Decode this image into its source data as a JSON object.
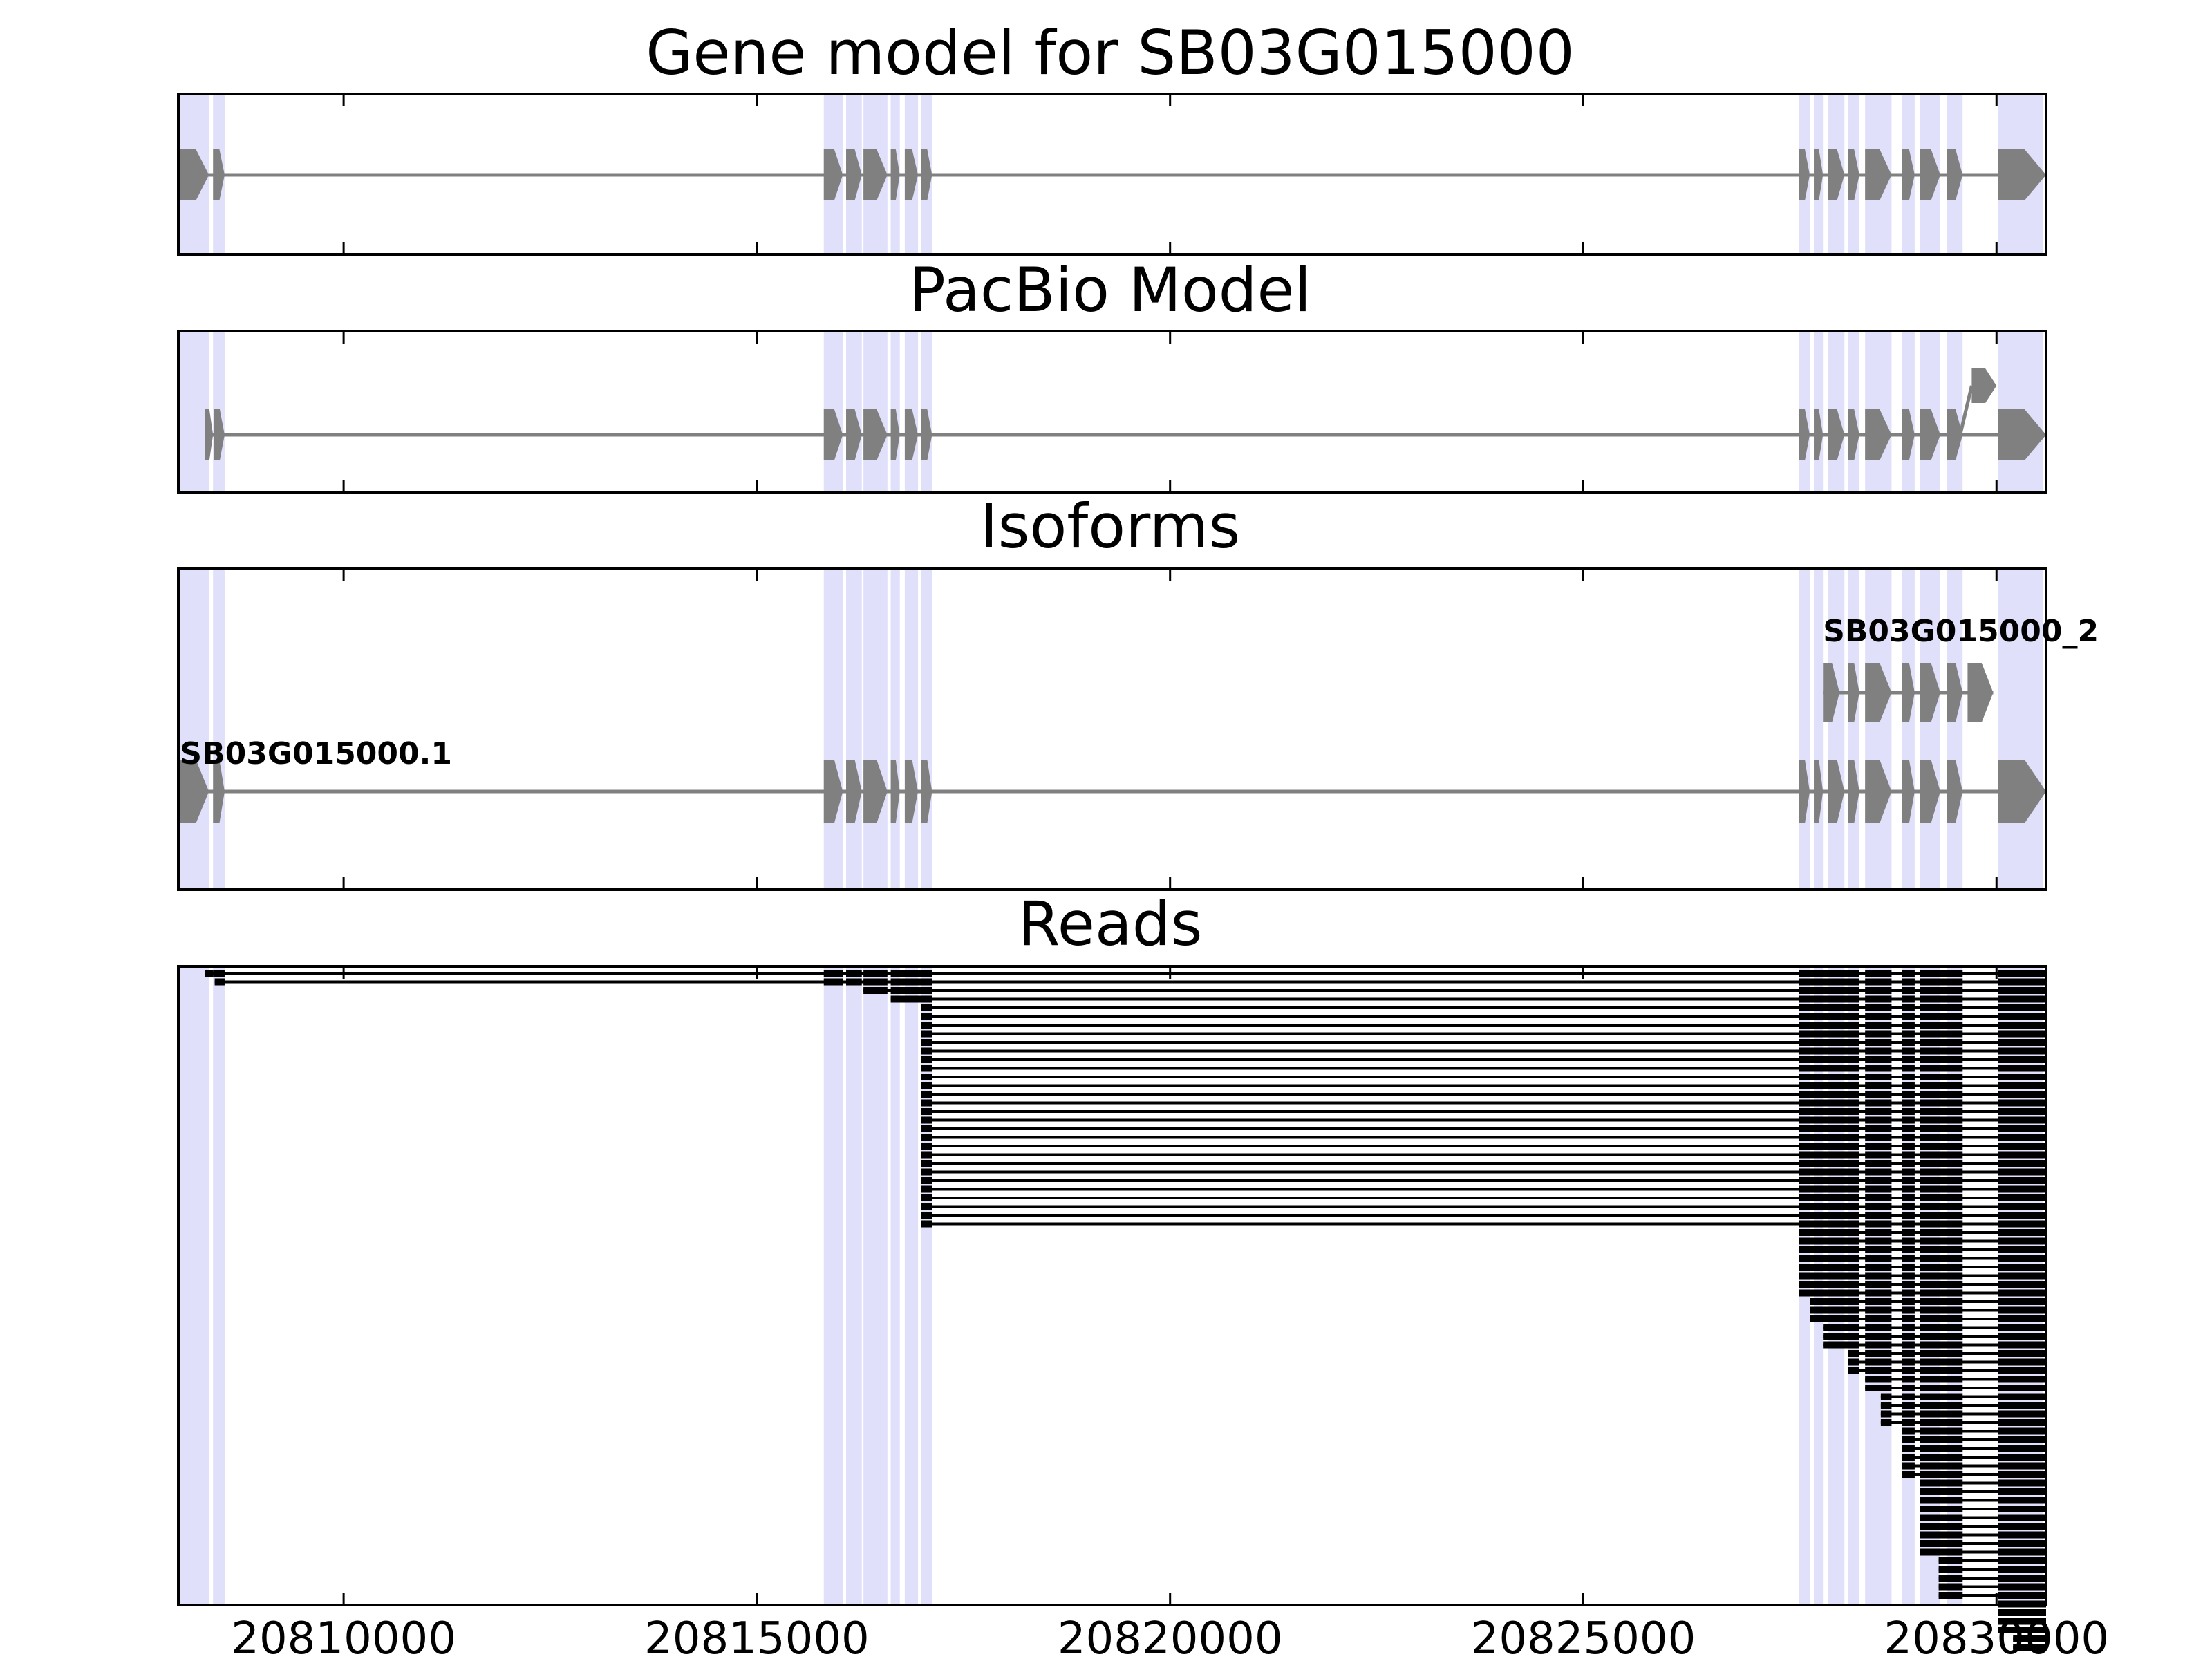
{
  "figure": {
    "title": "Gene model for SB03G015000",
    "colors": {
      "exon": "#808080",
      "highlight": "#e0e0fa",
      "read": "#000000",
      "frame": "#000000"
    }
  },
  "chart_data": {
    "type": "gene-model-tracks",
    "x_axis": {
      "xlim": [
        20808000,
        20830600
      ],
      "ticks": [
        20810000,
        20815000,
        20820000,
        20825000,
        20830000
      ],
      "tick_labels": [
        "20810000",
        "20815000",
        "20820000",
        "20825000",
        "20830000"
      ]
    },
    "exon_regions": [
      [
        20808020,
        20808370
      ],
      [
        20808420,
        20808560
      ],
      [
        20815810,
        20816040
      ],
      [
        20816080,
        20816270
      ],
      [
        20816290,
        20816580
      ],
      [
        20816620,
        20816730
      ],
      [
        20816790,
        20816950
      ],
      [
        20816990,
        20817120
      ],
      [
        20827610,
        20827740
      ],
      [
        20827790,
        20827900
      ],
      [
        20827960,
        20828160
      ],
      [
        20828200,
        20828340
      ],
      [
        20828410,
        20828730
      ],
      [
        20828860,
        20829010
      ],
      [
        20829070,
        20829320
      ],
      [
        20829400,
        20829590
      ],
      [
        20830020,
        20830560
      ]
    ],
    "tracks": [
      {
        "title": "Gene model for SB03G015000",
        "models": [
          {
            "label": "",
            "lane": 0,
            "exons": [
              [
                20808020,
                20808370
              ],
              [
                20808420,
                20808560
              ],
              [
                20815810,
                20816040
              ],
              [
                20816080,
                20816270
              ],
              [
                20816290,
                20816580
              ],
              [
                20816620,
                20816730
              ],
              [
                20816790,
                20816950
              ],
              [
                20816990,
                20817120
              ],
              [
                20827610,
                20827740
              ],
              [
                20827790,
                20827900
              ],
              [
                20827960,
                20828160
              ],
              [
                20828200,
                20828340
              ],
              [
                20828410,
                20828730
              ],
              [
                20828860,
                20829010
              ],
              [
                20829070,
                20829320
              ],
              [
                20829400,
                20829590
              ],
              [
                20830020,
                20830600
              ]
            ]
          }
        ]
      },
      {
        "title": "PacBio Model",
        "models": [
          {
            "label": "",
            "lane": 0,
            "exons": [
              [
                20808320,
                20808420
              ],
              [
                20808430,
                20808560
              ],
              [
                20815810,
                20816040
              ],
              [
                20816080,
                20816270
              ],
              [
                20816290,
                20816580
              ],
              [
                20816620,
                20816730
              ],
              [
                20816790,
                20816950
              ],
              [
                20816990,
                20817120
              ],
              [
                20827610,
                20827740
              ],
              [
                20827790,
                20827900
              ],
              [
                20827960,
                20828160
              ],
              [
                20828200,
                20828340
              ],
              [
                20828410,
                20828730
              ],
              [
                20828860,
                20829010
              ],
              [
                20829070,
                20829320
              ],
              [
                20829400,
                20829590
              ],
              [
                20830020,
                20830600
              ]
            ]
          },
          {
            "label": "",
            "lane": 1,
            "exons": [
              [
                20829700,
                20830000
              ]
            ],
            "branch_from": 20829560
          }
        ]
      },
      {
        "title": "Isoforms",
        "models": [
          {
            "label": "SB03G015000.1",
            "lane": 0,
            "exons": [
              [
                20808020,
                20808370
              ],
              [
                20808420,
                20808560
              ],
              [
                20815810,
                20816040
              ],
              [
                20816080,
                20816270
              ],
              [
                20816290,
                20816580
              ],
              [
                20816620,
                20816730
              ],
              [
                20816790,
                20816950
              ],
              [
                20816990,
                20817120
              ],
              [
                20827610,
                20827740
              ],
              [
                20827790,
                20827900
              ],
              [
                20827960,
                20828160
              ],
              [
                20828200,
                20828340
              ],
              [
                20828410,
                20828730
              ],
              [
                20828860,
                20829010
              ],
              [
                20829070,
                20829320
              ],
              [
                20829400,
                20829590
              ],
              [
                20830020,
                20830600
              ]
            ]
          },
          {
            "label": "SB03G015000_2",
            "lane": 1,
            "exons": [
              [
                20827900,
                20828100
              ],
              [
                20828200,
                20828340
              ],
              [
                20828410,
                20828730
              ],
              [
                20828860,
                20829010
              ],
              [
                20829070,
                20829320
              ],
              [
                20829400,
                20829590
              ],
              [
                20829650,
                20829960
              ]
            ]
          }
        ]
      },
      {
        "title": "Reads",
        "reads": {
          "layout": "stacked",
          "groups": [
            {
              "count": 1,
              "exons": [
                [
                  20808320,
                  20808420
                ],
                [
                  20808420,
                  20808560
                ],
                [
                  20815810,
                  20816040
                ],
                [
                  20816080,
                  20816270
                ],
                [
                  20816290,
                  20816580
                ],
                [
                  20816620,
                  20817120
                ],
                [
                  20827610,
                  20828340
                ],
                [
                  20828410,
                  20828730
                ],
                [
                  20828860,
                  20829010
                ],
                [
                  20829070,
                  20829590
                ],
                [
                  20830020,
                  20830600
                ]
              ]
            },
            {
              "count": 1,
              "exons": [
                [
                  20808440,
                  20808560
                ],
                [
                  20815810,
                  20816040
                ],
                [
                  20816080,
                  20816270
                ],
                [
                  20816290,
                  20816580
                ],
                [
                  20816620,
                  20817120
                ],
                [
                  20827610,
                  20828340
                ],
                [
                  20828410,
                  20828730
                ],
                [
                  20828860,
                  20829010
                ],
                [
                  20829070,
                  20829590
                ],
                [
                  20830020,
                  20830600
                ]
              ]
            },
            {
              "count": 1,
              "exons": [
                [
                  20816290,
                  20816580
                ],
                [
                  20816620,
                  20817120
                ],
                [
                  20827610,
                  20828340
                ],
                [
                  20828410,
                  20828730
                ],
                [
                  20828860,
                  20829010
                ],
                [
                  20829070,
                  20829590
                ],
                [
                  20830020,
                  20830600
                ]
              ]
            },
            {
              "count": 1,
              "exons": [
                [
                  20816620,
                  20817120
                ],
                [
                  20827610,
                  20828340
                ],
                [
                  20828410,
                  20828730
                ],
                [
                  20828860,
                  20829010
                ],
                [
                  20829070,
                  20829590
                ],
                [
                  20830020,
                  20830600
                ]
              ]
            },
            {
              "count": 26,
              "exons": [
                [
                  20816990,
                  20817120
                ],
                [
                  20827610,
                  20828340
                ],
                [
                  20828410,
                  20828730
                ],
                [
                  20828860,
                  20829010
                ],
                [
                  20829070,
                  20829590
                ],
                [
                  20830020,
                  20830600
                ]
              ]
            },
            {
              "count": 8,
              "exons": [
                [
                  20827610,
                  20828340
                ],
                [
                  20828410,
                  20828730
                ],
                [
                  20828860,
                  20829010
                ],
                [
                  20829070,
                  20829590
                ],
                [
                  20830020,
                  20830600
                ]
              ]
            },
            {
              "count": 3,
              "exons": [
                [
                  20827740,
                  20828340
                ],
                [
                  20828410,
                  20828730
                ],
                [
                  20828860,
                  20829010
                ],
                [
                  20829070,
                  20829590
                ],
                [
                  20830020,
                  20830600
                ]
              ]
            },
            {
              "count": 3,
              "exons": [
                [
                  20827900,
                  20828340
                ],
                [
                  20828410,
                  20828730
                ],
                [
                  20828860,
                  20829010
                ],
                [
                  20829070,
                  20829590
                ],
                [
                  20830020,
                  20830600
                ]
              ]
            },
            {
              "count": 3,
              "exons": [
                [
                  20828200,
                  20828340
                ],
                [
                  20828410,
                  20828730
                ],
                [
                  20828860,
                  20829010
                ],
                [
                  20829070,
                  20829590
                ],
                [
                  20830020,
                  20830600
                ]
              ]
            },
            {
              "count": 2,
              "exons": [
                [
                  20828410,
                  20828730
                ],
                [
                  20828860,
                  20829010
                ],
                [
                  20829070,
                  20829590
                ],
                [
                  20830020,
                  20830600
                ]
              ]
            },
            {
              "count": 4,
              "exons": [
                [
                  20828600,
                  20828730
                ],
                [
                  20828860,
                  20829010
                ],
                [
                  20829070,
                  20829590
                ],
                [
                  20830020,
                  20830600
                ]
              ]
            },
            {
              "count": 6,
              "exons": [
                [
                  20828860,
                  20829010
                ],
                [
                  20829070,
                  20829590
                ],
                [
                  20830020,
                  20830600
                ]
              ]
            },
            {
              "count": 9,
              "exons": [
                [
                  20829070,
                  20829590
                ],
                [
                  20830020,
                  20830600
                ]
              ]
            },
            {
              "count": 5,
              "exons": [
                [
                  20829300,
                  20829590
                ],
                [
                  20830020,
                  20830600
                ]
              ]
            },
            {
              "count": 4,
              "exons": [
                [
                  20830020,
                  20830600
                ]
              ]
            },
            {
              "count": 2,
              "exons": [
                [
                  20830200,
                  20830600
                ]
              ]
            }
          ]
        }
      }
    ]
  }
}
